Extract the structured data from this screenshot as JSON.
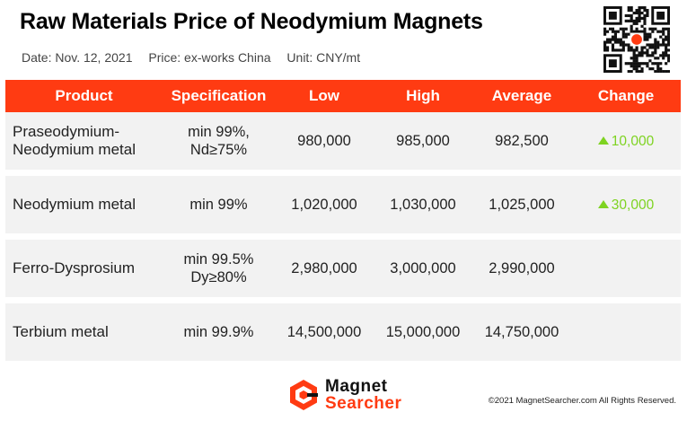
{
  "header": {
    "title": "Raw Materials Price of Neodymium Magnets",
    "date": "Date: Nov. 12, 2021",
    "price_basis": "Price: ex-works China",
    "unit": "Unit: CNY/mt"
  },
  "table": {
    "columns": [
      "Product",
      "Specification",
      "Low",
      "High",
      "Average",
      "Change"
    ],
    "rows": [
      {
        "product": [
          "Praseodymium-",
          "Neodymium metal"
        ],
        "spec": [
          "min 99%,",
          "Nd≥75%"
        ],
        "low": "980,000",
        "high": "985,000",
        "average": "982,500",
        "change": "10,000",
        "change_direction": "up"
      },
      {
        "product": [
          "Neodymium metal"
        ],
        "spec": [
          "min 99%"
        ],
        "low": "1,020,000",
        "high": "1,030,000",
        "average": "1,025,000",
        "change": "30,000",
        "change_direction": "up"
      },
      {
        "product": [
          "Ferro-Dysprosium"
        ],
        "spec": [
          "min 99.5%",
          "Dy≥80%"
        ],
        "low": "2,980,000",
        "high": "3,000,000",
        "average": "2,990,000",
        "change": "",
        "change_direction": ""
      },
      {
        "product": [
          "Terbium metal"
        ],
        "spec": [
          "min 99.9%"
        ],
        "low": "14,500,000",
        "high": "15,000,000",
        "average": "14,750,000",
        "change": "",
        "change_direction": ""
      }
    ]
  },
  "footer": {
    "logo_line1": "Magnet",
    "logo_line2": "Searcher",
    "copyright": "©2021 MagnetSearcher.com All Rights Reserved."
  },
  "colors": {
    "accent": "#ff3b12",
    "row_bg": "#f2f2f2",
    "up": "#7ed321"
  },
  "icons": {
    "qr": "qr-code-icon",
    "logo": "magnet-searcher-logo-icon",
    "up": "up-triangle-icon"
  }
}
